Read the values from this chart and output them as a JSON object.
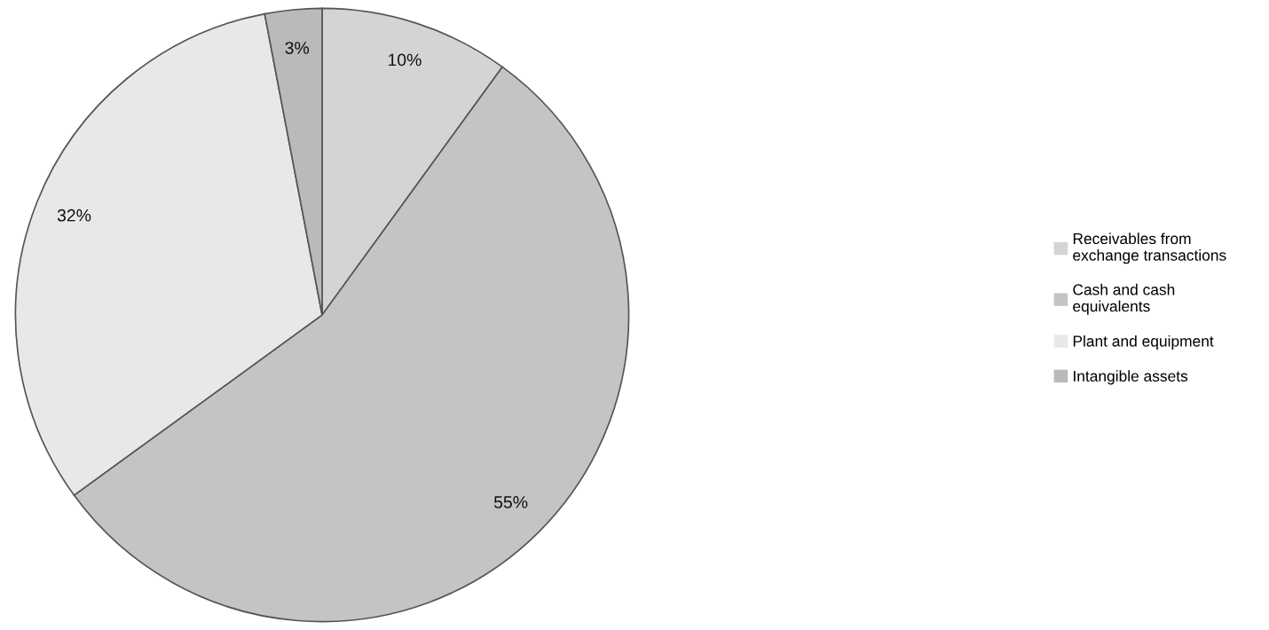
{
  "chart_data": {
    "type": "pie",
    "categories": [
      "Receivables from exchange transactions",
      "Cash and cash equivalents",
      "Plant and equipment",
      "Intangible assets"
    ],
    "values": [
      10,
      55,
      32,
      3
    ],
    "colors": [
      "#d4d4d4",
      "#c4c4c4",
      "#e8e8e8",
      "#bababa"
    ],
    "value_labels": [
      "10%",
      "55%",
      "32%",
      "3%"
    ],
    "legend": "right"
  }
}
